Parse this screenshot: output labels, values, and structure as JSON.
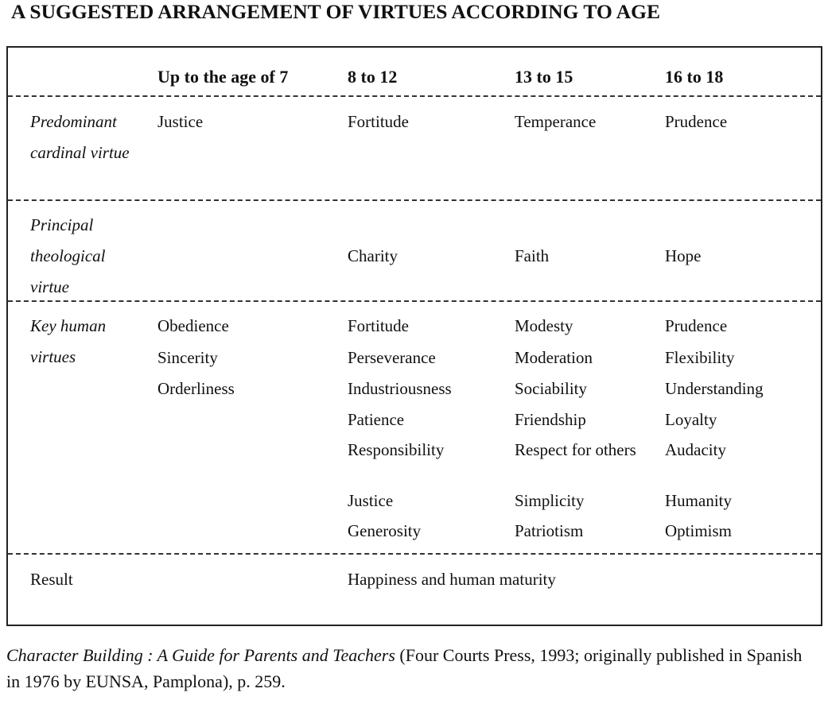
{
  "title": "A SUGGESTED ARRANGEMENT OF VIRTUES ACCORDING TO AGE",
  "table": {
    "columns": [
      "Up to the age of 7",
      "8 to 12",
      "13 to 15",
      "16 to 18"
    ],
    "rows": [
      {
        "label": "Predominant cardinal virtue",
        "cells": [
          [
            "Justice"
          ],
          [
            "Fortitude"
          ],
          [
            "Temperance"
          ],
          [
            "Prudence"
          ]
        ]
      },
      {
        "label": "Principal theological virtue",
        "cells": [
          [],
          [
            "Charity"
          ],
          [
            "Faith"
          ],
          [
            "Hope"
          ]
        ]
      },
      {
        "label": "Key human virtues",
        "cells": [
          [
            "Obedience",
            "Sincerity",
            "Orderliness"
          ],
          [
            "Fortitude",
            "Perseverance",
            "Industriousness",
            "Patience",
            "Responsibility",
            "Justice",
            "Generosity"
          ],
          [
            "Modesty",
            "Moderation",
            "Sociability",
            "Friendship",
            "Respect for others",
            "Simplicity",
            "Patriotism"
          ],
          [
            "Prudence",
            "Flexibility",
            "Understanding",
            "Loyalty",
            "Audacity",
            "Humanity",
            "Optimism"
          ]
        ]
      },
      {
        "label": "Result",
        "cells": [
          [],
          [
            "Happiness and human maturity"
          ]
        ]
      }
    ]
  },
  "citation": {
    "title": "Character Building : A Guide for Parents and Teachers",
    "details": " (Four Courts Press, 1993; originally published in Spanish in 1976 by EUNSA, Pamplona), p. 259."
  }
}
